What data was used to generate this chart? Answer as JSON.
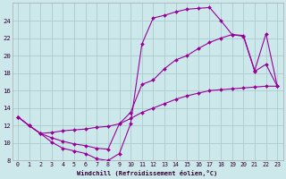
{
  "xlabel": "Windchill (Refroidissement éolien,°C)",
  "background_color": "#cce8ea",
  "grid_color": "#aacccc",
  "line_color": "#990099",
  "xlim": [
    -0.5,
    23.5
  ],
  "ylim": [
    8,
    26
  ],
  "yticks": [
    8,
    10,
    12,
    14,
    16,
    18,
    20,
    22,
    24
  ],
  "xticks": [
    0,
    1,
    2,
    3,
    4,
    5,
    6,
    7,
    8,
    9,
    10,
    11,
    12,
    13,
    14,
    15,
    16,
    17,
    18,
    19,
    20,
    21,
    22,
    23
  ],
  "line1_x": [
    0,
    1,
    2,
    3,
    4,
    5,
    6,
    7,
    8,
    9,
    10,
    11,
    12,
    13,
    14,
    15,
    16,
    17,
    18,
    19,
    20,
    21,
    22,
    23
  ],
  "line1_y": [
    13.0,
    12.0,
    11.1,
    10.1,
    9.4,
    9.1,
    8.8,
    8.2,
    8.0,
    8.8,
    12.2,
    21.3,
    24.3,
    24.6,
    25.0,
    25.3,
    25.4,
    25.5,
    24.0,
    22.4,
    22.3,
    18.3,
    22.5,
    16.5
  ],
  "line2_x": [
    0,
    1,
    2,
    3,
    4,
    5,
    6,
    7,
    8,
    9,
    10,
    11,
    12,
    13,
    14,
    15,
    16,
    17,
    18,
    19,
    20,
    21,
    22,
    23
  ],
  "line2_y": [
    13.0,
    12.0,
    11.1,
    10.6,
    10.2,
    9.9,
    9.7,
    9.4,
    9.3,
    12.2,
    13.5,
    16.7,
    17.2,
    18.5,
    19.5,
    20.0,
    20.8,
    21.5,
    22.0,
    22.4,
    22.2,
    18.2,
    19.0,
    16.5
  ],
  "line3_x": [
    0,
    1,
    2,
    3,
    4,
    5,
    6,
    7,
    8,
    9,
    10,
    11,
    12,
    13,
    14,
    15,
    16,
    17,
    18,
    19,
    20,
    21,
    22,
    23
  ],
  "line3_y": [
    13.0,
    12.0,
    11.1,
    11.2,
    11.4,
    11.5,
    11.6,
    11.8,
    11.9,
    12.2,
    12.8,
    13.5,
    14.0,
    14.5,
    15.0,
    15.4,
    15.7,
    16.0,
    16.1,
    16.2,
    16.3,
    16.4,
    16.5,
    16.5
  ]
}
